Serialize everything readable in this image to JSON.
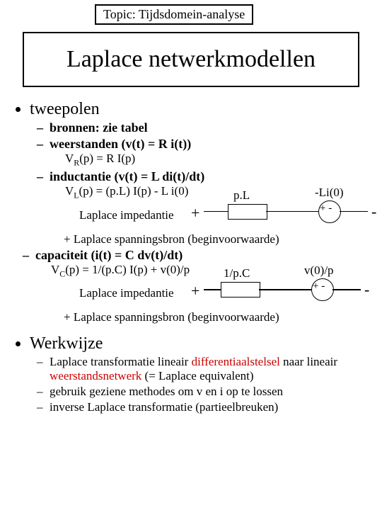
{
  "topic_label": "Topic: Tijdsdomein-analyse",
  "title": "Laplace netwerkmodellen",
  "sections": {
    "tweepolen": {
      "heading": "tweepolen",
      "bronnen": "bronnen: zie tabel",
      "weerstanden": {
        "heading": "weerstanden (v(t) = R i(t))",
        "formula_html": "V<span class='sub'>R</span>(p) = R I(p)"
      },
      "inductantie": {
        "heading": "inductantie (v(t) = L di(t)/dt)",
        "formula_html": "V<span class='sub'>L</span>(p) = (p.L) I(p) - L i(0)",
        "impedance_label": "p.L",
        "source_label": "-Li(0)",
        "laplace_imp": "Laplace impedantie",
        "spanningsbron": "+ Laplace spanningsbron (beginvoorwaarde)"
      },
      "capaciteit": {
        "heading": "capaciteit (i(t) = C dv(t)/dt)",
        "formula_html": "V<span class='sub'>C</span>(p) = 1/(p.C) I(p) + v(0)/p",
        "impedance_label": "1/p.C",
        "source_label": "v(0)/p",
        "laplace_imp": "Laplace impedantie",
        "spanningsbron": "+ Laplace spanningsbron (beginvoorwaarde)"
      }
    },
    "werkwijze": {
      "heading": "Werkwijze",
      "items": [
        {
          "pre": "Laplace transformatie lineair ",
          "red1": "differentiaalstelsel",
          "mid": " naar lineair ",
          "red2": "weerstandsnetwerk",
          "post": " (= Laplace equivalent)"
        },
        {
          "text": "gebruik geziene methodes om v en i op te lossen"
        },
        {
          "text": "inverse Laplace transformatie (partieelbreuken)"
        }
      ]
    }
  },
  "style": {
    "text_color": "#000000",
    "accent_color": "#cc0000",
    "bg_color": "#ffffff",
    "border_color": "#000000"
  }
}
